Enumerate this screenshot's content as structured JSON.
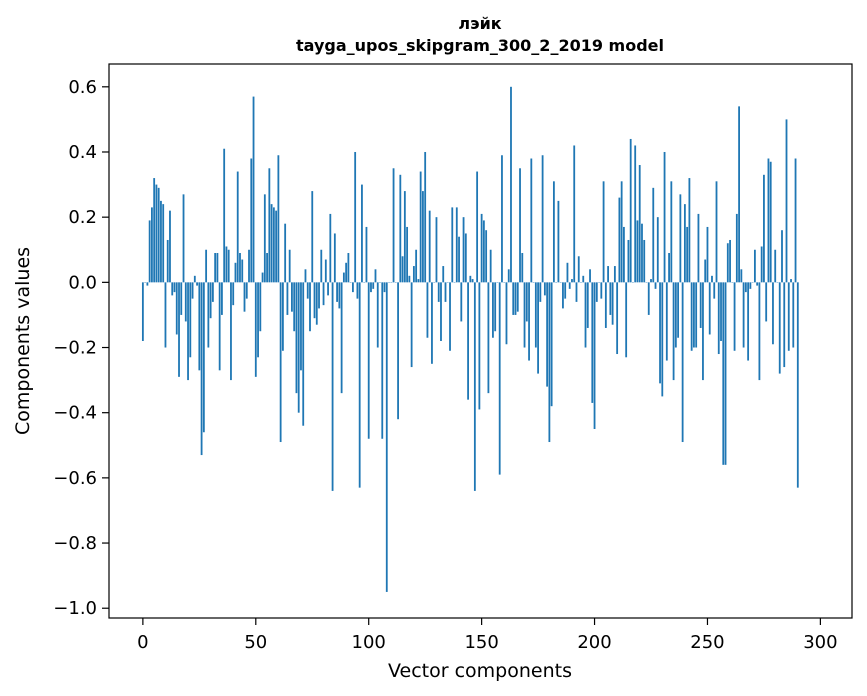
{
  "chart_data": {
    "type": "bar",
    "title": "лэйк",
    "subtitle": "tayga_upos_skipgram_300_2_2019 model",
    "xlabel": "Vector components",
    "ylabel": "Components values",
    "xlim": [
      -15,
      314
    ],
    "ylim": [
      -1.03,
      0.67
    ],
    "xticks": [
      0,
      50,
      100,
      150,
      200,
      250,
      300
    ],
    "yticks": [
      -1.0,
      -0.8,
      -0.6,
      -0.4,
      -0.2,
      0.0,
      0.2,
      0.4,
      0.6
    ],
    "ytick_labels": [
      "−1.0",
      "−0.8",
      "−0.6",
      "−0.4",
      "−0.2",
      "0.0",
      "0.2",
      "0.4",
      "0.6"
    ],
    "bar_color": "#1f77b4",
    "grid": false,
    "values": [
      -0.18,
      0.0,
      -0.01,
      0.19,
      0.23,
      0.32,
      0.3,
      0.29,
      0.25,
      0.24,
      -0.2,
      0.13,
      0.22,
      -0.04,
      -0.03,
      -0.16,
      -0.29,
      -0.1,
      0.27,
      -0.12,
      -0.3,
      -0.23,
      -0.05,
      0.02,
      -0.01,
      -0.27,
      -0.53,
      -0.46,
      0.1,
      -0.2,
      -0.11,
      -0.06,
      0.09,
      0.09,
      -0.27,
      -0.1,
      0.41,
      0.11,
      0.1,
      -0.3,
      -0.07,
      0.06,
      0.34,
      0.09,
      0.07,
      -0.09,
      -0.05,
      0.1,
      0.38,
      0.57,
      -0.29,
      -0.23,
      -0.15,
      0.03,
      0.27,
      0.09,
      0.35,
      0.24,
      0.23,
      0.22,
      0.39,
      -0.49,
      -0.21,
      0.18,
      -0.1,
      0.1,
      -0.09,
      -0.15,
      -0.34,
      -0.4,
      -0.27,
      -0.44,
      0.04,
      -0.05,
      -0.15,
      0.28,
      -0.11,
      -0.13,
      -0.08,
      0.1,
      -0.07,
      0.07,
      -0.04,
      0.21,
      -0.64,
      0.15,
      -0.06,
      -0.08,
      -0.34,
      0.03,
      0.06,
      0.09,
      0.0,
      -0.03,
      0.4,
      -0.05,
      -0.63,
      0.3,
      0.0,
      0.17,
      -0.48,
      -0.03,
      -0.02,
      0.04,
      -0.2,
      0.0,
      -0.48,
      -0.03,
      -0.95,
      0.0,
      0.0,
      0.35,
      0.0,
      -0.42,
      0.33,
      0.08,
      0.28,
      0.17,
      0.02,
      -0.26,
      0.05,
      0.1,
      0.01,
      0.34,
      0.28,
      0.4,
      -0.17,
      0.22,
      -0.25,
      0.0,
      0.2,
      -0.06,
      -0.18,
      0.05,
      -0.06,
      0.0,
      -0.21,
      0.23,
      0.0,
      0.23,
      0.14,
      -0.12,
      0.2,
      0.15,
      -0.36,
      0.02,
      0.01,
      -0.64,
      0.34,
      -0.39,
      0.21,
      0.19,
      0.16,
      -0.34,
      0.1,
      -0.17,
      -0.15,
      0.0,
      -0.59,
      0.39,
      0.0,
      -0.19,
      0.04,
      0.6,
      -0.1,
      -0.1,
      -0.09,
      0.35,
      0.09,
      -0.2,
      -0.12,
      -0.24,
      0.38,
      0.0,
      -0.2,
      -0.28,
      -0.06,
      0.39,
      -0.04,
      -0.32,
      -0.49,
      -0.38,
      0.31,
      0.0,
      0.25,
      0.0,
      -0.08,
      -0.05,
      0.06,
      -0.02,
      0.01,
      0.42,
      -0.06,
      0.08,
      0.0,
      0.02,
      -0.2,
      -0.14,
      0.04,
      -0.37,
      -0.45,
      -0.06,
      0.0,
      -0.05,
      0.31,
      -0.14,
      0.05,
      -0.1,
      -0.13,
      0.05,
      -0.22,
      0.26,
      0.31,
      0.17,
      -0.23,
      0.13,
      0.44,
      0.0,
      0.42,
      0.19,
      0.36,
      0.18,
      0.13,
      0.0,
      -0.1,
      0.01,
      0.29,
      -0.02,
      0.2,
      -0.31,
      -0.35,
      0.4,
      -0.24,
      0.09,
      0.31,
      -0.3,
      -0.2,
      -0.17,
      0.27,
      -0.49,
      0.24,
      0.17,
      0.32,
      -0.21,
      -0.2,
      -0.2,
      0.21,
      -0.14,
      -0.3,
      0.07,
      0.17,
      -0.16,
      0.02,
      -0.05,
      0.31,
      -0.22,
      -0.18,
      -0.56,
      -0.56,
      0.12,
      0.13,
      0.0,
      -0.21,
      0.21,
      0.54,
      0.04,
      -0.2,
      -0.03,
      -0.24,
      -0.02,
      0.0,
      0.1,
      -0.01,
      -0.3,
      0.11,
      0.33,
      -0.12,
      0.38,
      0.37,
      -0.19,
      0.1,
      0.0,
      -0.28,
      0.16,
      -0.26,
      0.5,
      -0.21,
      0.01,
      -0.2,
      0.38,
      -0.63
    ]
  }
}
